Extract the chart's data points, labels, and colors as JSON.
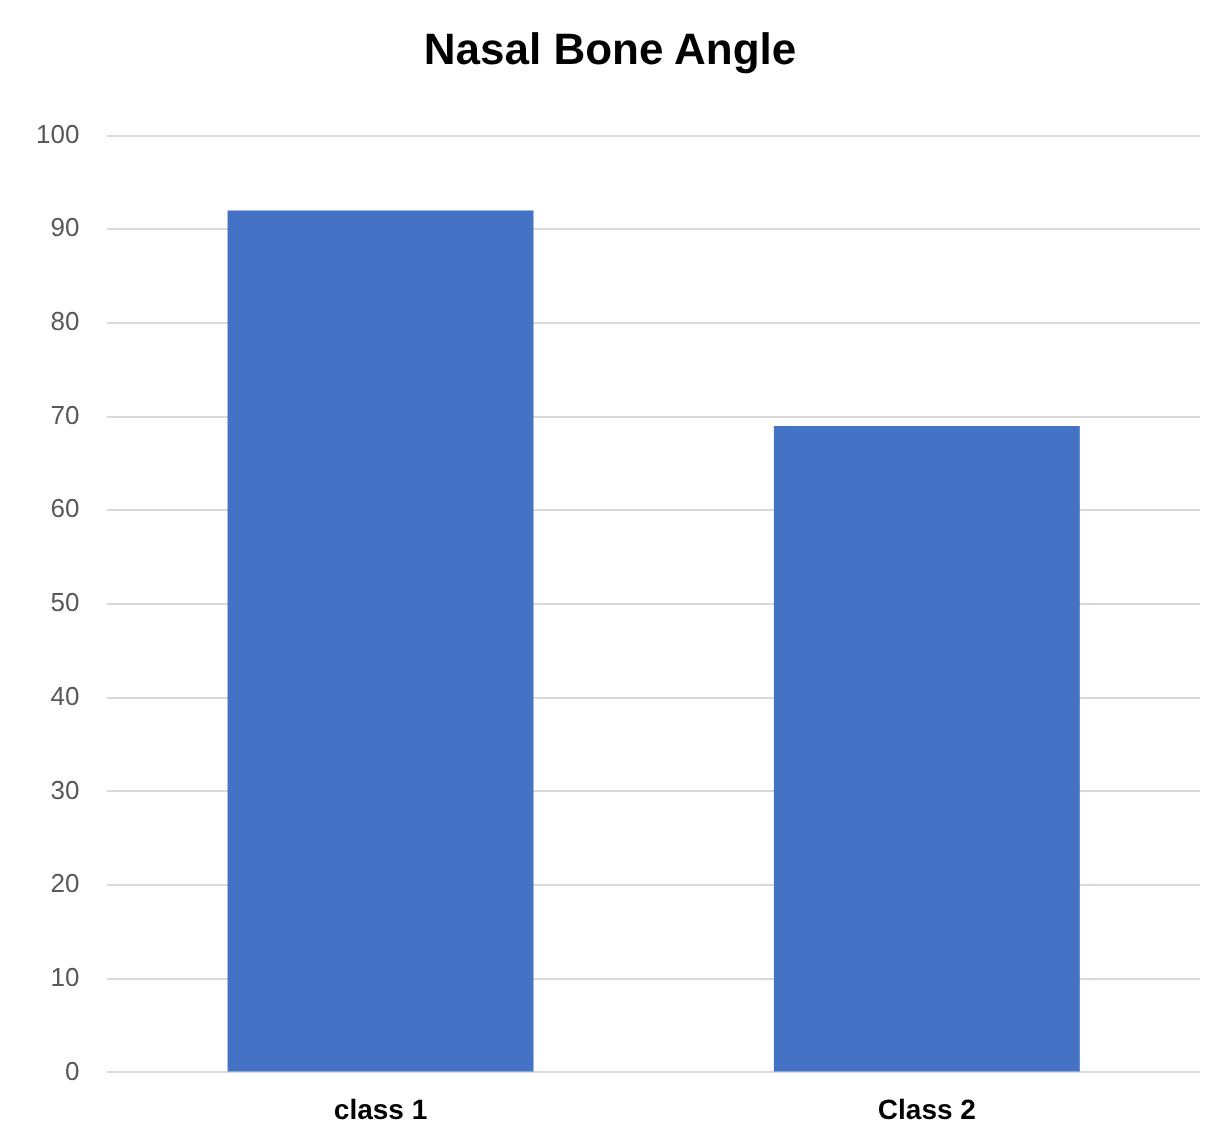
{
  "chart_data": {
    "type": "bar",
    "title": "Nasal Bone Angle",
    "categories": [
      "class 1",
      "Class 2"
    ],
    "values": [
      92,
      69
    ],
    "color": "#4472c4",
    "ylim": [
      0,
      100
    ],
    "yticks": [
      0,
      10,
      20,
      30,
      40,
      50,
      60,
      70,
      80,
      90,
      100
    ],
    "grid": "y"
  }
}
